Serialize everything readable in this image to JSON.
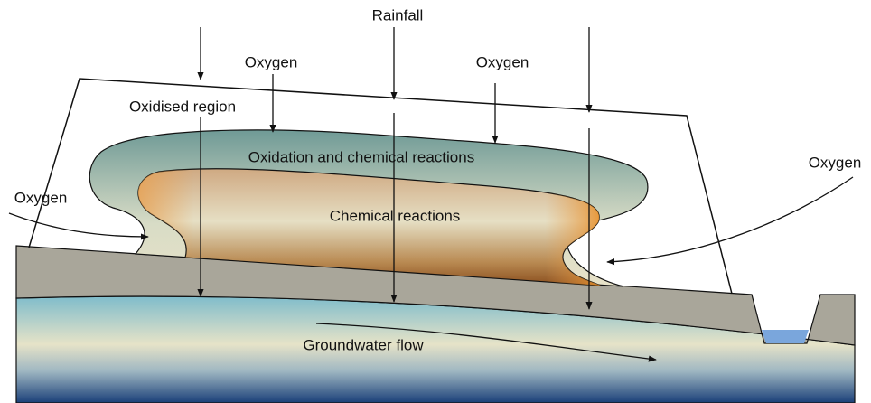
{
  "labels": {
    "rainfall": "Rainfall",
    "oxygen": [
      "Oxygen",
      "Oxygen",
      "Oxygen",
      "Oxygen"
    ],
    "oxidised_region": "Oxidised region",
    "oxidation": "Oxidation and chemical reactions",
    "chemical": "Chemical reactions",
    "groundwater": "Groundwater flow"
  }
}
